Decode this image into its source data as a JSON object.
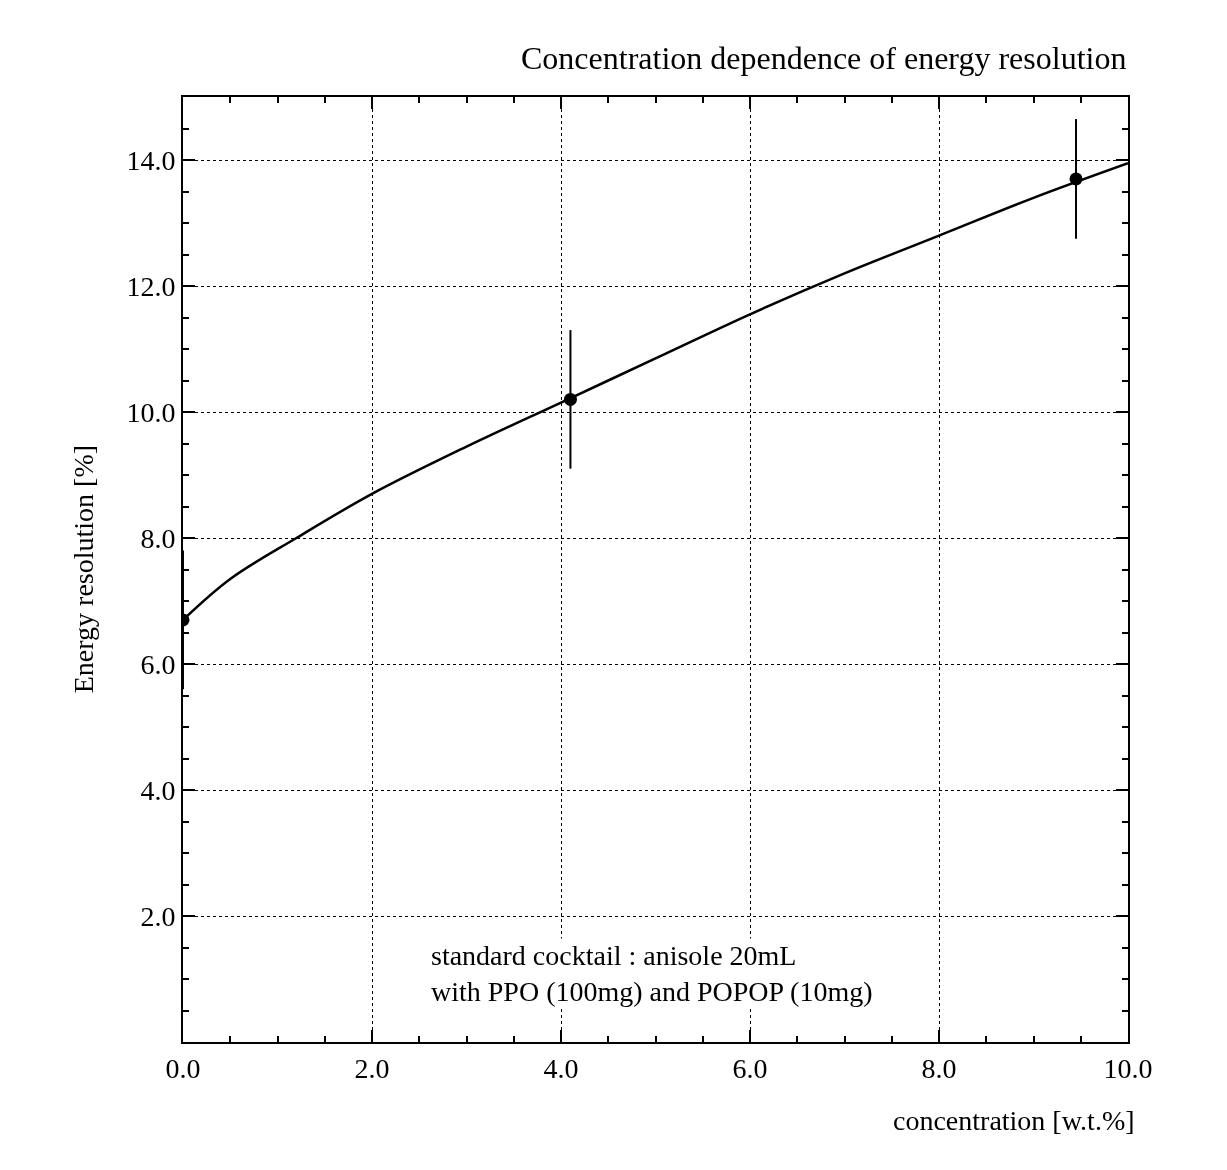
{
  "chart_data": {
    "type": "scatter",
    "title": "Concentration dependence of energy resolution",
    "xlabel": "concentration [w.t.%]",
    "ylabel": "Energy resolution [%]",
    "series": [
      {
        "color": "#000000",
        "marker": "circle",
        "x": [
          0.0,
          4.1,
          9.45
        ],
        "values": [
          6.7,
          10.2,
          13.7
        ],
        "errors": [
          1.1,
          1.1,
          0.95
        ]
      },
      {
        "type": "line",
        "color": "#000000",
        "marker": "none",
        "line_style": "solid",
        "x": [
          0.0,
          0.5,
          1.2,
          2.0,
          3.0,
          4.0,
          5.0,
          6.0,
          7.0,
          8.0,
          9.0,
          10.0
        ],
        "values": [
          6.7,
          7.35,
          8.0,
          8.7,
          9.45,
          10.15,
          10.85,
          11.55,
          12.2,
          12.8,
          13.4,
          13.95
        ]
      }
    ],
    "xlim": [
      0,
      10
    ],
    "ylim": [
      0,
      15
    ],
    "xticks": [
      {
        "value": 0,
        "label": "0.0"
      },
      {
        "value": 2,
        "label": "2.0"
      },
      {
        "value": 4,
        "label": "4.0"
      },
      {
        "value": 6,
        "label": "6.0"
      },
      {
        "value": 8,
        "label": "8.0"
      },
      {
        "value": 10,
        "label": "10.0"
      }
    ],
    "yticks": [
      {
        "value": 2,
        "label": "2.0"
      },
      {
        "value": 4,
        "label": "4.0"
      },
      {
        "value": 6,
        "label": "6.0"
      },
      {
        "value": 8,
        "label": "8.0"
      },
      {
        "value": 10,
        "label": "10.0"
      },
      {
        "value": 12,
        "label": "12.0"
      },
      {
        "value": 14,
        "label": "14.0"
      }
    ],
    "grid": true,
    "annotations": [
      "standard cocktail : anisole 20mL\nwith PPO (100mg) and POPOP (10mg)"
    ]
  }
}
